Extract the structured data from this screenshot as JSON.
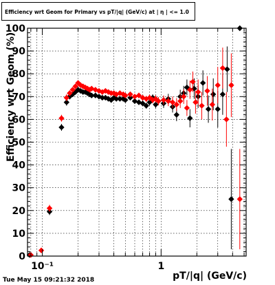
{
  "chart_data": {
    "type": "scatter",
    "title": "Efficiency wrt Geom for Primary vs pT/|q| (GeV/c) at | η | <= 1.0",
    "xlabel": "pT/|q| (GeV/c)",
    "ylabel": "Efficiency wrt Geom (%)",
    "x_scale": "log",
    "xlim": [
      0.075,
      5.2
    ],
    "ylim": [
      0,
      100
    ],
    "x_tick_labels": [
      "10⁻¹",
      "1"
    ],
    "y_ticks": [
      0,
      10,
      20,
      30,
      40,
      50,
      60,
      70,
      80,
      90,
      100
    ],
    "grid": true,
    "series": [
      {
        "color": "#000000",
        "marker": "diamond",
        "points": [
          [
            0.078,
            0.5,
            0.5
          ],
          [
            0.115,
            19.5,
            1.5
          ],
          [
            0.145,
            56.5,
            1.5
          ],
          [
            0.16,
            67.5,
            1.5
          ],
          [
            0.17,
            70,
            1.2
          ],
          [
            0.18,
            71,
            1
          ],
          [
            0.19,
            72,
            1
          ],
          [
            0.2,
            73,
            1
          ],
          [
            0.21,
            72.5,
            1
          ],
          [
            0.22,
            72,
            1
          ],
          [
            0.23,
            72,
            1
          ],
          [
            0.24,
            71.5,
            1
          ],
          [
            0.25,
            71,
            1
          ],
          [
            0.26,
            70.5,
            1
          ],
          [
            0.28,
            70.5,
            1
          ],
          [
            0.3,
            70,
            1
          ],
          [
            0.32,
            69.5,
            1
          ],
          [
            0.34,
            69.5,
            1
          ],
          [
            0.36,
            69,
            1
          ],
          [
            0.38,
            68.5,
            1
          ],
          [
            0.4,
            69.5,
            1
          ],
          [
            0.42,
            69,
            1
          ],
          [
            0.45,
            69,
            1
          ],
          [
            0.48,
            69,
            1
          ],
          [
            0.5,
            68.5,
            1
          ],
          [
            0.55,
            69.5,
            1
          ],
          [
            0.6,
            68,
            1.2
          ],
          [
            0.65,
            67.5,
            1.2
          ],
          [
            0.7,
            67,
            1.2
          ],
          [
            0.75,
            66,
            1.3
          ],
          [
            0.8,
            67.5,
            1.4
          ],
          [
            0.85,
            69.5,
            1.5
          ],
          [
            0.9,
            66.5,
            1.6
          ],
          [
            0.95,
            68,
            1.8
          ],
          [
            1.05,
            67,
            2
          ],
          [
            1.15,
            69,
            2.2
          ],
          [
            1.25,
            65.5,
            2.5
          ],
          [
            1.35,
            62,
            2.8
          ],
          [
            1.45,
            70,
            3
          ],
          [
            1.55,
            71.5,
            3.2
          ],
          [
            1.65,
            74,
            3.5
          ],
          [
            1.75,
            60.5,
            4
          ],
          [
            1.9,
            73.5,
            4.5
          ],
          [
            2.05,
            70,
            5
          ],
          [
            2.25,
            76,
            5.5
          ],
          [
            2.5,
            64.5,
            6
          ],
          [
            2.75,
            71,
            7
          ],
          [
            3.0,
            64.5,
            8
          ],
          [
            3.3,
            71,
            9
          ],
          [
            3.6,
            82,
            10
          ],
          [
            3.9,
            25,
            22
          ],
          [
            4.6,
            100,
            1
          ]
        ]
      },
      {
        "color": "#ff0000",
        "marker": "diamond",
        "points": [
          [
            0.08,
            0.5,
            0.5
          ],
          [
            0.098,
            2.5,
            0.8
          ],
          [
            0.115,
            21,
            1.5
          ],
          [
            0.145,
            60.5,
            1.5
          ],
          [
            0.16,
            69.5,
            1.5
          ],
          [
            0.17,
            71.5,
            1.2
          ],
          [
            0.18,
            73,
            1
          ],
          [
            0.19,
            74.5,
            1
          ],
          [
            0.2,
            76,
            1
          ],
          [
            0.21,
            75,
            1
          ],
          [
            0.22,
            74.5,
            1
          ],
          [
            0.23,
            74,
            1
          ],
          [
            0.24,
            73.5,
            1
          ],
          [
            0.25,
            73,
            1
          ],
          [
            0.26,
            73.5,
            1
          ],
          [
            0.28,
            73,
            1
          ],
          [
            0.3,
            72.5,
            1
          ],
          [
            0.32,
            72,
            1
          ],
          [
            0.34,
            72.5,
            1
          ],
          [
            0.36,
            72,
            1
          ],
          [
            0.38,
            71.5,
            1
          ],
          [
            0.4,
            71.5,
            1
          ],
          [
            0.42,
            71,
            1
          ],
          [
            0.45,
            71.5,
            1
          ],
          [
            0.48,
            71,
            1
          ],
          [
            0.5,
            70.5,
            1
          ],
          [
            0.55,
            71,
            1
          ],
          [
            0.6,
            70,
            1.2
          ],
          [
            0.65,
            70.5,
            1.2
          ],
          [
            0.7,
            69.5,
            1.2
          ],
          [
            0.75,
            69,
            1.3
          ],
          [
            0.8,
            69.5,
            1.4
          ],
          [
            0.85,
            68.5,
            1.5
          ],
          [
            0.9,
            69,
            1.6
          ],
          [
            0.95,
            68,
            1.8
          ],
          [
            1.05,
            68.5,
            2
          ],
          [
            1.15,
            68,
            2.2
          ],
          [
            1.25,
            67.5,
            2.5
          ],
          [
            1.35,
            66.5,
            2.8
          ],
          [
            1.45,
            68,
            3
          ],
          [
            1.55,
            70,
            3.2
          ],
          [
            1.65,
            65,
            3.5
          ],
          [
            1.75,
            73,
            4
          ],
          [
            1.85,
            76.5,
            4.5
          ],
          [
            1.95,
            67.5,
            5
          ],
          [
            2.05,
            72,
            5.5
          ],
          [
            2.2,
            66,
            6
          ],
          [
            2.45,
            72.5,
            6.5
          ],
          [
            2.7,
            66.5,
            7
          ],
          [
            3.0,
            75,
            8
          ],
          [
            3.3,
            82.5,
            9
          ],
          [
            3.55,
            60,
            12
          ],
          [
            3.9,
            75,
            14
          ],
          [
            4.6,
            25,
            22
          ]
        ]
      }
    ]
  },
  "footer": {
    "timestamp": "Tue May 15 09:21:32 2018"
  }
}
